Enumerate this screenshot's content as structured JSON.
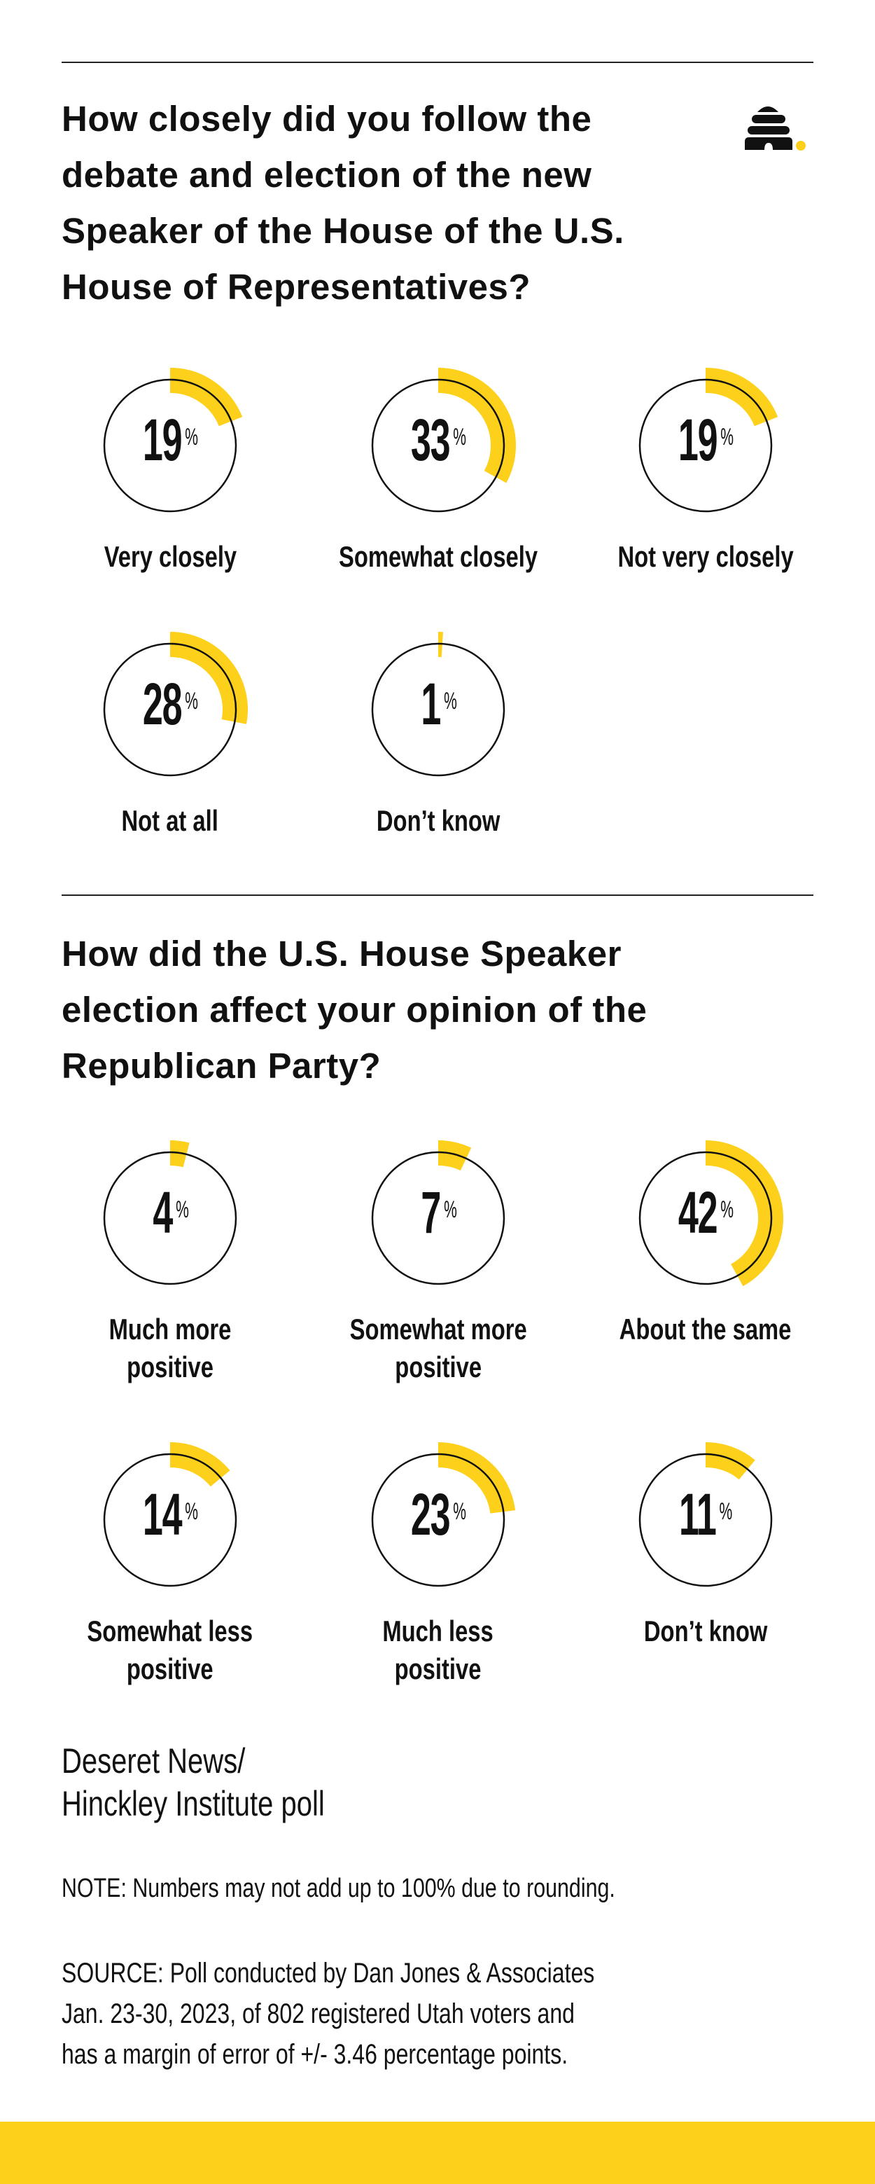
{
  "colors": {
    "accent": "#fdd01c",
    "ink": "#111111",
    "circle": "#111111"
  },
  "logo": {
    "icon": "beehive-icon",
    "dot_color": "#fdd01c"
  },
  "chart_data": [
    {
      "type": "radial-progress",
      "title_lines": [
        "How closely did you follow the",
        "debate and election of the new",
        "Speaker of the House of the U.S.",
        "House of Representatives?"
      ],
      "unit": "%",
      "categories": [
        [
          "Very closely"
        ],
        [
          "Somewhat closely"
        ],
        [
          "Not very closely"
        ],
        [
          "Not at all"
        ],
        [
          "Don’t know"
        ]
      ],
      "values": [
        19,
        33,
        19,
        28,
        1
      ]
    },
    {
      "type": "radial-progress",
      "title_lines": [
        "How did the U.S. House Speaker",
        "election affect your opinion of the",
        "Republican Party?"
      ],
      "unit": "%",
      "categories": [
        [
          "Much more",
          "positive"
        ],
        [
          "Somewhat more",
          "positive"
        ],
        [
          "About the same"
        ],
        [
          "Somewhat less",
          "positive"
        ],
        [
          "Much less",
          "positive"
        ],
        [
          "Don’t know"
        ]
      ],
      "values": [
        4,
        7,
        42,
        14,
        23,
        11
      ]
    }
  ],
  "footer": {
    "credit_lines": [
      "Deseret News/",
      "Hinckley Institute poll"
    ],
    "note": "NOTE: Numbers may not add up to 100% due to rounding.",
    "source_lines": [
      "SOURCE: Poll conducted by Dan Jones & Associates",
      "Jan. 23-30, 2023, of 802 registered Utah voters and",
      "has a margin of error of +/- 3.46 percentage points."
    ]
  }
}
